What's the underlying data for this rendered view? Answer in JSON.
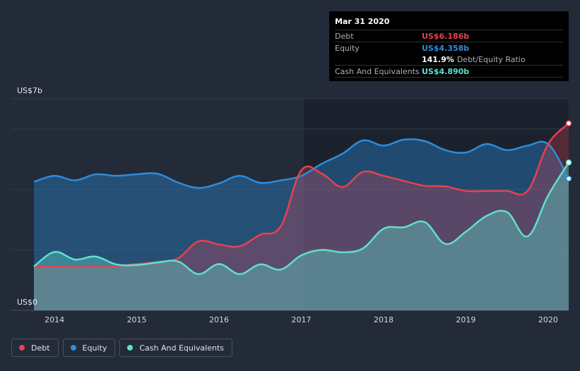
{
  "chart_data": {
    "type": "area",
    "y_axis": {
      "top_label": "US$7b",
      "bottom_label": "US$0",
      "ylim": [
        0,
        7
      ]
    },
    "x_ticks": [
      "2014",
      "2015",
      "2016",
      "2017",
      "2018",
      "2019",
      "2020"
    ],
    "x_range": [
      2013.75,
      2020.25
    ],
    "series": [
      {
        "name": "Debt",
        "color": "#e84150",
        "x": [
          2013.75,
          2014.0,
          2014.25,
          2014.5,
          2014.75,
          2015.0,
          2015.25,
          2015.5,
          2015.75,
          2016.0,
          2016.25,
          2016.5,
          2016.75,
          2017.0,
          2017.25,
          2017.5,
          2017.75,
          2018.0,
          2018.25,
          2018.5,
          2018.75,
          2019.0,
          2019.25,
          2019.5,
          2019.75,
          2020.0,
          2020.25
        ],
        "values": [
          1.45,
          1.45,
          1.47,
          1.47,
          1.47,
          1.53,
          1.6,
          1.72,
          2.28,
          2.18,
          2.12,
          2.5,
          2.78,
          4.63,
          4.52,
          4.08,
          4.58,
          4.45,
          4.28,
          4.12,
          4.1,
          3.95,
          3.95,
          3.95,
          3.95,
          5.5,
          6.186
        ]
      },
      {
        "name": "Equity",
        "color": "#2d8cdc",
        "x": [
          2013.75,
          2014.0,
          2014.25,
          2014.5,
          2014.75,
          2015.0,
          2015.25,
          2015.5,
          2015.75,
          2016.0,
          2016.25,
          2016.5,
          2016.75,
          2017.0,
          2017.25,
          2017.5,
          2017.75,
          2018.0,
          2018.25,
          2018.5,
          2018.75,
          2019.0,
          2019.25,
          2019.5,
          2019.75,
          2020.0,
          2020.25
        ],
        "values": [
          4.25,
          4.45,
          4.3,
          4.5,
          4.45,
          4.5,
          4.52,
          4.23,
          4.05,
          4.2,
          4.45,
          4.22,
          4.3,
          4.45,
          4.85,
          5.18,
          5.62,
          5.45,
          5.65,
          5.6,
          5.3,
          5.22,
          5.5,
          5.3,
          5.45,
          5.5,
          4.358
        ]
      },
      {
        "name": "Cash And Equivalents",
        "color": "#5fe0cf",
        "x": [
          2013.75,
          2014.0,
          2014.25,
          2014.5,
          2014.75,
          2015.0,
          2015.25,
          2015.5,
          2015.75,
          2016.0,
          2016.25,
          2016.5,
          2016.75,
          2017.0,
          2017.25,
          2017.5,
          2017.75,
          2018.0,
          2018.25,
          2018.5,
          2018.75,
          2019.0,
          2019.25,
          2019.5,
          2019.75,
          2020.0,
          2020.25
        ],
        "values": [
          1.45,
          1.93,
          1.68,
          1.78,
          1.52,
          1.5,
          1.58,
          1.62,
          1.2,
          1.53,
          1.2,
          1.52,
          1.35,
          1.82,
          2.0,
          1.92,
          2.05,
          2.7,
          2.75,
          2.92,
          2.2,
          2.6,
          3.12,
          3.25,
          2.45,
          3.8,
          4.89
        ]
      }
    ],
    "tooltip": {
      "date": "Mar 31 2020",
      "rows": [
        {
          "label": "Debt",
          "value": "US$6.186b",
          "color": "#e84150"
        },
        {
          "label": "Equity",
          "value": "US$4.358b",
          "color": "#2d8cdc"
        }
      ],
      "ratio_value": "141.9%",
      "ratio_label": "Debt/Equity Ratio",
      "cash_label": "Cash And Equivalents",
      "cash_value": "US$4.890b",
      "cash_color": "#5fe0cf"
    },
    "legend": [
      {
        "label": "Debt",
        "color": "#e84150"
      },
      {
        "label": "Equity",
        "color": "#2d8cdc"
      },
      {
        "label": "Cash And Equivalents",
        "color": "#5fe0cf"
      }
    ]
  }
}
